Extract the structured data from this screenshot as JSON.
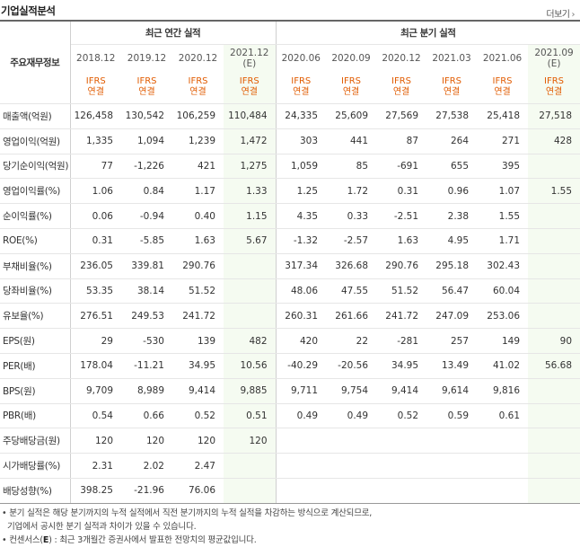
{
  "section_title": "기업실적분석",
  "more_label": "더보기",
  "more_arrow": "›",
  "row_header_label": "주요재무정보",
  "annual_group_label": "최근 연간 실적",
  "quarter_group_label": "최근 분기 실적",
  "annual_periods": [
    {
      "top": "2018.12",
      "bottom": "",
      "ifrs": "IFRS",
      "basis": "연결"
    },
    {
      "top": "2019.12",
      "bottom": "",
      "ifrs": "IFRS",
      "basis": "연결"
    },
    {
      "top": "2020.12",
      "bottom": "",
      "ifrs": "IFRS",
      "basis": "연결"
    },
    {
      "top": "2021.12",
      "bottom": "(E)",
      "ifrs": "IFRS",
      "basis": "연결"
    }
  ],
  "quarter_periods": [
    {
      "top": "2020.06",
      "bottom": "",
      "ifrs": "IFRS",
      "basis": "연결"
    },
    {
      "top": "2020.09",
      "bottom": "",
      "ifrs": "IFRS",
      "basis": "연결"
    },
    {
      "top": "2020.12",
      "bottom": "",
      "ifrs": "IFRS",
      "basis": "연결"
    },
    {
      "top": "2021.03",
      "bottom": "",
      "ifrs": "IFRS",
      "basis": "연결"
    },
    {
      "top": "2021.06",
      "bottom": "",
      "ifrs": "IFRS",
      "basis": "연결"
    },
    {
      "top": "2021.09",
      "bottom": "(E)",
      "ifrs": "IFRS",
      "basis": "연결"
    }
  ],
  "rows": [
    {
      "label": "매출액(억원)",
      "values": [
        "126,458",
        "130,542",
        "106,259",
        "110,484",
        "24,335",
        "25,609",
        "27,569",
        "27,538",
        "25,418",
        "27,518"
      ]
    },
    {
      "label": "영업이익(억원)",
      "values": [
        "1,335",
        "1,094",
        "1,239",
        "1,472",
        "303",
        "441",
        "87",
        "264",
        "271",
        "428"
      ]
    },
    {
      "label": "당기순이익(억원)",
      "values": [
        "77",
        "-1,226",
        "421",
        "1,275",
        "1,059",
        "85",
        "-691",
        "655",
        "395",
        ""
      ]
    },
    {
      "label": "영업이익률(%)",
      "values": [
        "1.06",
        "0.84",
        "1.17",
        "1.33",
        "1.25",
        "1.72",
        "0.31",
        "0.96",
        "1.07",
        "1.55"
      ]
    },
    {
      "label": "순이익률(%)",
      "values": [
        "0.06",
        "-0.94",
        "0.40",
        "1.15",
        "4.35",
        "0.33",
        "-2.51",
        "2.38",
        "1.55",
        ""
      ]
    },
    {
      "label": "ROE(%)",
      "values": [
        "0.31",
        "-5.85",
        "1.63",
        "5.67",
        "-1.32",
        "-2.57",
        "1.63",
        "4.95",
        "1.71",
        ""
      ]
    },
    {
      "label": "부채비율(%)",
      "values": [
        "236.05",
        "339.81",
        "290.76",
        "",
        "317.34",
        "326.68",
        "290.76",
        "295.18",
        "302.43",
        ""
      ]
    },
    {
      "label": "당좌비율(%)",
      "values": [
        "53.35",
        "38.14",
        "51.52",
        "",
        "48.06",
        "47.55",
        "51.52",
        "56.47",
        "60.04",
        ""
      ]
    },
    {
      "label": "유보율(%)",
      "values": [
        "276.51",
        "249.53",
        "241.72",
        "",
        "260.31",
        "261.66",
        "241.72",
        "247.09",
        "253.06",
        ""
      ]
    },
    {
      "label": "EPS(원)",
      "values": [
        "29",
        "-530",
        "139",
        "482",
        "420",
        "22",
        "-281",
        "257",
        "149",
        "90"
      ]
    },
    {
      "label": "PER(배)",
      "values": [
        "178.04",
        "-11.21",
        "34.95",
        "10.56",
        "-40.29",
        "-20.56",
        "34.95",
        "13.49",
        "41.02",
        "56.68"
      ]
    },
    {
      "label": "BPS(원)",
      "values": [
        "9,709",
        "8,989",
        "9,414",
        "9,885",
        "9,711",
        "9,754",
        "9,414",
        "9,614",
        "9,816",
        ""
      ]
    },
    {
      "label": "PBR(배)",
      "values": [
        "0.54",
        "0.66",
        "0.52",
        "0.51",
        "0.49",
        "0.49",
        "0.52",
        "0.59",
        "0.61",
        ""
      ]
    },
    {
      "label": "주당배당금(원)",
      "values": [
        "120",
        "120",
        "120",
        "120",
        "",
        "",
        "",
        "",
        "",
        ""
      ]
    },
    {
      "label": "시가배당률(%)",
      "values": [
        "2.31",
        "2.02",
        "2.47",
        "",
        "",
        "",
        "",
        "",
        "",
        ""
      ]
    },
    {
      "label": "배당성향(%)",
      "values": [
        "398.25",
        "-21.96",
        "76.06",
        "",
        "",
        "",
        "",
        "",
        "",
        ""
      ]
    }
  ],
  "notes": {
    "line1": "• 분기 실적은 해당 분기까지의 누적 실적에서 직전 분기까지의 누적 실적을 차감하는 방식으로 계산되므로,",
    "line2": "기업에서 공시한 분기 실적과 차이가 있을 수 있습니다.",
    "line3_prefix": "• 컨센서스(",
    "line3_mark": "E",
    "line3_suffix": ") : 최근 3개월간 증권사에서 발표한 전망치의 평균값입니다."
  },
  "colors": {
    "negative": "#dd0000",
    "ifrs": "#e15b00",
    "estimate_bg": "#f5fbf1"
  }
}
